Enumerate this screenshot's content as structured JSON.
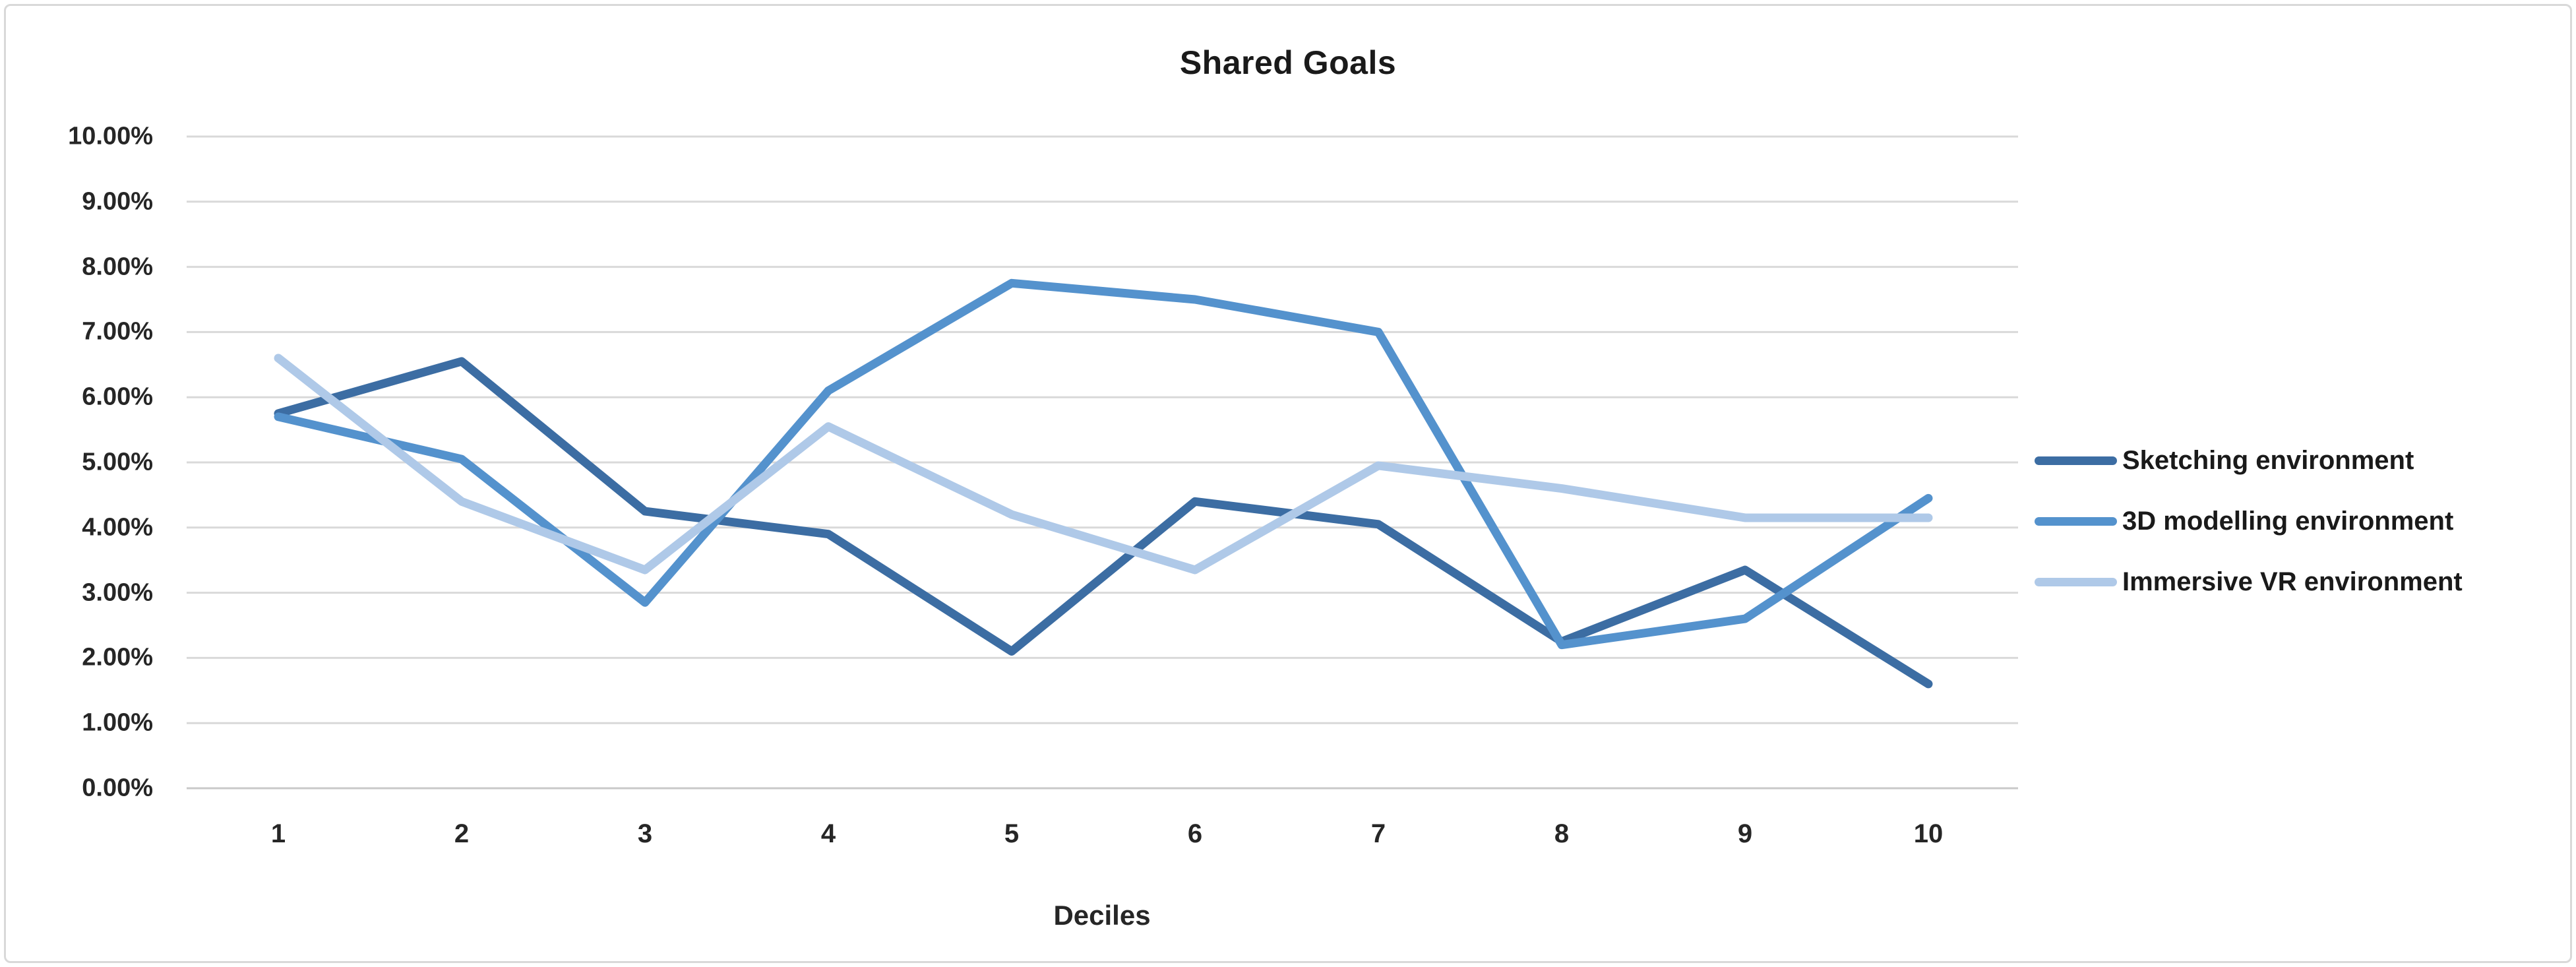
{
  "window": {
    "background": "#FFFFFF",
    "border_color": "#D9D9D9"
  },
  "colors": {
    "grid": "#D9D9D9",
    "axis": "#C9C9C9",
    "text": "#262626"
  },
  "chart_data": {
    "type": "line",
    "title": "Shared Goals",
    "xlabel": "Deciles",
    "ylabel": "",
    "value_unit": "percent",
    "categories": [
      "1",
      "2",
      "3",
      "4",
      "5",
      "6",
      "7",
      "8",
      "9",
      "10"
    ],
    "y_ticks": [
      "0.00%",
      "1.00%",
      "2.00%",
      "3.00%",
      "4.00%",
      "5.00%",
      "6.00%",
      "7.00%",
      "8.00%",
      "9.00%",
      "10.00%"
    ],
    "ylim": [
      0,
      10
    ],
    "grid": "horizontal",
    "legend_position": "right",
    "series": [
      {
        "name": "Sketching environment",
        "color": "#3C6DA3",
        "values": [
          5.75,
          6.55,
          4.25,
          3.9,
          2.1,
          4.4,
          4.05,
          2.25,
          3.35,
          1.6
        ]
      },
      {
        "name": "3D modelling environment",
        "color": "#5492CD",
        "values": [
          5.7,
          5.05,
          2.85,
          6.1,
          7.75,
          7.5,
          7.0,
          2.2,
          2.6,
          4.45
        ]
      },
      {
        "name": "Immersive VR environment",
        "color": "#AFC9E8",
        "values": [
          6.6,
          4.4,
          3.35,
          5.55,
          4.2,
          3.35,
          4.95,
          4.6,
          4.15,
          4.15
        ]
      }
    ]
  }
}
